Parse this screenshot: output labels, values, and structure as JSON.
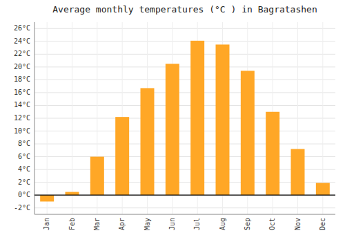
{
  "chart_data": {
    "type": "bar",
    "title": "Average monthly temperatures (°C ) in Bagratashen",
    "categories": [
      "Jan",
      "Feb",
      "Mar",
      "Apr",
      "May",
      "Jun",
      "Jul",
      "Aug",
      "Sep",
      "Oct",
      "Nov",
      "Dec"
    ],
    "values": [
      -1.0,
      0.5,
      6.0,
      12.2,
      16.7,
      20.5,
      24.1,
      23.5,
      19.4,
      13.0,
      7.2,
      1.9
    ],
    "color": "#FFA726",
    "ylim": [
      -3,
      27
    ],
    "yticks": [
      {
        "value": -2,
        "label": "-2°C"
      },
      {
        "value": 0,
        "label": "0°C"
      },
      {
        "value": 2,
        "label": "2°C"
      },
      {
        "value": 4,
        "label": "4°C"
      },
      {
        "value": 6,
        "label": "6°C"
      },
      {
        "value": 8,
        "label": "8°C"
      },
      {
        "value": 10,
        "label": "10°C"
      },
      {
        "value": 12,
        "label": "12°C"
      },
      {
        "value": 14,
        "label": "14°C"
      },
      {
        "value": 16,
        "label": "16°C"
      },
      {
        "value": 18,
        "label": "18°C"
      },
      {
        "value": 20,
        "label": "20°C"
      },
      {
        "value": 22,
        "label": "22°C"
      },
      {
        "value": 24,
        "label": "24°C"
      },
      {
        "value": 26,
        "label": "26°C"
      }
    ],
    "grid": true
  }
}
